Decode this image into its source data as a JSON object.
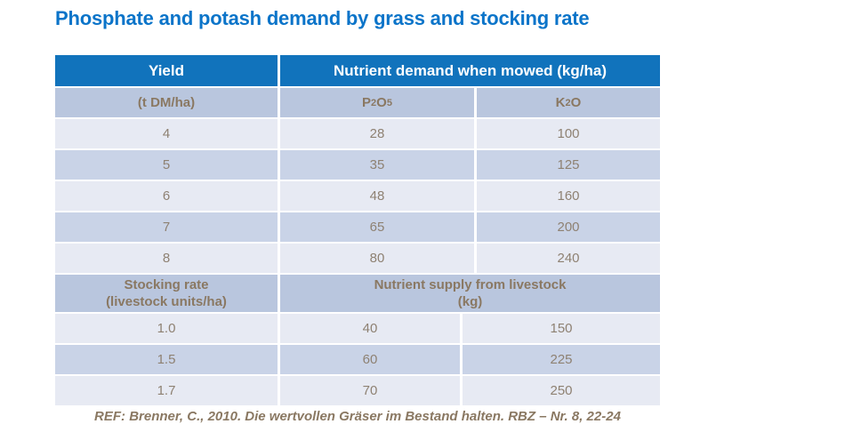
{
  "title": "Phosphate and potash demand by grass and stocking rate",
  "colors": {
    "title_blue": "#0b74c9",
    "header_blue": "#1173bc",
    "subheader_bg": "#b9c6de",
    "row_light_bg": "#e7eaf3",
    "row_dark_bg": "#c9d3e7",
    "text_brown": "#8a7862",
    "value_gray_brown": "#8e8172"
  },
  "table": {
    "header": {
      "yield_label": "Yield",
      "mowed_label": "Nutrient demand when mowed (kg/ha)"
    },
    "subheader": {
      "yield_unit": "(t DM/ha)",
      "p2o5": {
        "b1": "P",
        "s1": "2",
        "b2": "O",
        "s2": "5"
      },
      "k2o": {
        "b1": "K",
        "s1": "2",
        "b2": "O"
      }
    },
    "mowed_rows": [
      [
        "4",
        "28",
        "100"
      ],
      [
        "5",
        "35",
        "125"
      ],
      [
        "6",
        "48",
        "160"
      ],
      [
        "7",
        "65",
        "200"
      ],
      [
        "8",
        "80",
        "240"
      ]
    ],
    "section_header": {
      "stocking_line1": "Stocking rate",
      "stocking_line2": "(livestock units/ha)",
      "supply_line1": "Nutrient supply from livestock",
      "supply_line2": "(kg)"
    },
    "livestock_rows": [
      [
        "1.0",
        "40",
        "150"
      ],
      [
        "1.5",
        "60",
        "225"
      ],
      [
        "1.7",
        "70",
        "250"
      ]
    ]
  },
  "footer": {
    "reference": "REF: Brenner, C., 2010. Die wertvollen Gräser im Bestand halten. RBZ – Nr. 8, 22-24"
  }
}
